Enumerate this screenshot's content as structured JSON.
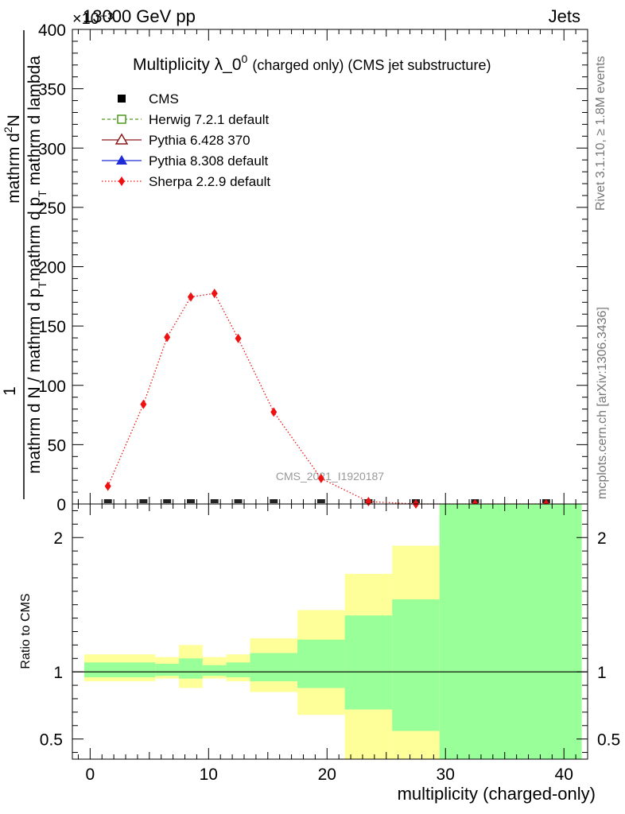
{
  "header": {
    "energy": "13000 GeV pp",
    "category": "Jets",
    "exponent": "×10⁻³"
  },
  "side_labels": {
    "rivet": "Rivet 3.1.10, ≥ 1.8M events",
    "mcplots": "mcplots.cern.ch [arXiv:1306.3436]"
  },
  "watermark": "CMS_2021_I1920187",
  "chart_data": [
    {
      "type": "scatter",
      "title_main": "Multiplicity λ_0",
      "title_sup": "0",
      "title_sub": "(charged only) (CMS jet substructure)",
      "ylabel_num": "1",
      "ylabel_num2": "mathrm d",
      "ylabel_num_sup": "2",
      "ylabel_num3": "N",
      "ylabel_den": "mathrm d N / mathrm d p",
      "ylabel_den_sub": "T",
      "ylabel_den2": "mathrm d p",
      "ylabel_den2_sub": "T",
      "ylabel_den3": " mathrm d lambda",
      "xlim": [
        -1.5,
        42
      ],
      "ylim": [
        0,
        400
      ],
      "y_scale_note": "×10⁻³",
      "y_ticks": [
        0,
        50,
        100,
        150,
        200,
        250,
        300,
        350,
        400
      ],
      "y_tick_labels": [
        "0",
        "50",
        "100",
        "150",
        "200",
        "250",
        "300",
        "350",
        "400"
      ],
      "legend": [
        {
          "name": "CMS",
          "color": "#000000",
          "marker": "square-filled",
          "line": "none"
        },
        {
          "name": "Herwig 7.2.1 default",
          "color": "#4a9a1a",
          "marker": "square-open",
          "line": "dashed"
        },
        {
          "name": "Pythia 6.428 370",
          "color": "#8b1a1a",
          "marker": "triangle-open",
          "line": "solid"
        },
        {
          "name": "Pythia 8.308 default",
          "color": "#1f2bd6",
          "marker": "triangle-filled",
          "line": "solid"
        },
        {
          "name": "Sherpa 2.2.9 default",
          "color": "#ee1111",
          "marker": "diamond",
          "line": "dotted"
        }
      ],
      "series": [
        {
          "name": "Sherpa 2.2.9 default",
          "x": [
            1.5,
            4.5,
            6.5,
            8.5,
            10.5,
            12.5,
            15.5,
            19.5,
            23.5,
            27.5,
            32.5,
            38.5
          ],
          "y": [
            15,
            84,
            140.5,
            174.5,
            177.5,
            139.5,
            77.5,
            21.5,
            2,
            0,
            0,
            0
          ]
        },
        {
          "name": "CMS",
          "x": [
            1.5,
            4.5,
            6.5,
            8.5,
            10.5,
            12.5,
            15.5,
            19.5,
            23.5,
            27.5,
            32.5,
            38.5
          ],
          "y": [
            0.5,
            0.5,
            0.5,
            0.5,
            0.5,
            0.5,
            0.5,
            0.5,
            0.5,
            0.5,
            0.5,
            0.5
          ]
        }
      ]
    },
    {
      "type": "area",
      "ylabel": "Ratio to CMS",
      "xlabel": "multiplicity (charged-only)",
      "xlim": [
        -1.5,
        42
      ],
      "ylim": [
        0.35,
        2.25
      ],
      "y_ticks": [
        0.5,
        1,
        2
      ],
      "y_tick_labels": [
        "0.5",
        "1",
        "2"
      ],
      "x_ticks": [
        0,
        10,
        20,
        30,
        40
      ],
      "x_tick_labels": [
        "0",
        "10",
        "20",
        "30",
        "40"
      ],
      "reference_line": 1,
      "band_colors": {
        "outer": "#ffff99",
        "inner": "#99ff99"
      },
      "bands": [
        {
          "x0": -0.5,
          "x1": 3.5,
          "y_lo": 0.93,
          "y_hi": 1.13,
          "g_lo": 0.96,
          "g_hi": 1.07
        },
        {
          "x0": 3.5,
          "x1": 5.5,
          "y_lo": 0.93,
          "y_hi": 1.13,
          "g_lo": 0.96,
          "g_hi": 1.07
        },
        {
          "x0": 5.5,
          "x1": 7.5,
          "y_lo": 0.95,
          "y_hi": 1.11,
          "g_lo": 0.97,
          "g_hi": 1.06
        },
        {
          "x0": 7.5,
          "x1": 9.5,
          "y_lo": 0.88,
          "y_hi": 1.2,
          "g_lo": 0.95,
          "g_hi": 1.1
        },
        {
          "x0": 9.5,
          "x1": 11.5,
          "y_lo": 0.95,
          "y_hi": 1.11,
          "g_lo": 0.97,
          "g_hi": 1.05
        },
        {
          "x0": 11.5,
          "x1": 13.5,
          "y_lo": 0.93,
          "y_hi": 1.13,
          "g_lo": 0.96,
          "g_hi": 1.07
        },
        {
          "x0": 13.5,
          "x1": 17.5,
          "y_lo": 0.85,
          "y_hi": 1.25,
          "g_lo": 0.93,
          "g_hi": 1.14
        },
        {
          "x0": 17.5,
          "x1": 21.5,
          "y_lo": 0.68,
          "y_hi": 1.46,
          "g_lo": 0.88,
          "g_hi": 1.24
        },
        {
          "x0": 21.5,
          "x1": 25.5,
          "y_lo": 0.35,
          "y_hi": 1.73,
          "g_lo": 0.72,
          "g_hi": 1.42
        },
        {
          "x0": 25.5,
          "x1": 29.5,
          "y_lo": 0.35,
          "y_hi": 1.94,
          "g_lo": 0.56,
          "g_hi": 1.54
        },
        {
          "x0": 29.5,
          "x1": 41.5,
          "y_lo": 0.35,
          "y_hi": 2.25,
          "g_lo": 0.35,
          "g_hi": 2.25
        }
      ]
    }
  ]
}
